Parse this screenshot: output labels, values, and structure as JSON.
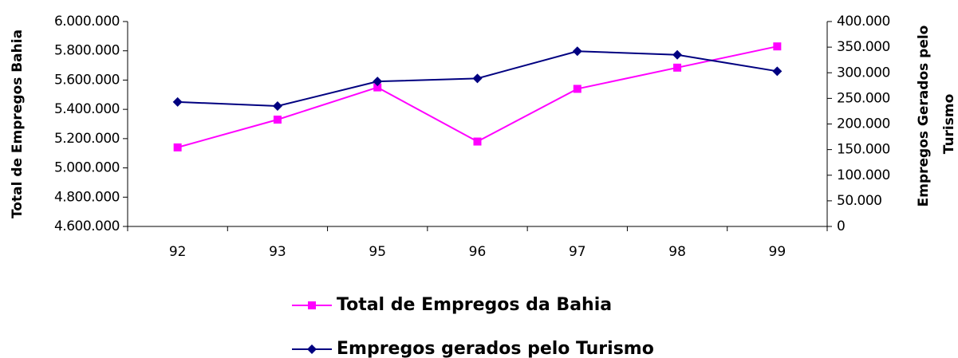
{
  "chart_data": {
    "type": "line",
    "ylabel": "Total de Empregos Bahia",
    "y2label": [
      "Empregos Gerados pelo",
      "Turismo"
    ],
    "categories": [
      "92",
      "93",
      "95",
      "96",
      "97",
      "98",
      "99"
    ],
    "series": [
      {
        "name": "Total de Empregos da Bahia",
        "color": "#ff00ff",
        "marker": "square",
        "axis": "y",
        "values": [
          5140000,
          5330000,
          5550000,
          5180000,
          5540000,
          5685000,
          5830000
        ]
      },
      {
        "name": "Empregos gerados pelo Turismo",
        "color": "#000080",
        "marker": "diamond",
        "axis": "y2",
        "values": [
          243000,
          235000,
          283000,
          289000,
          342000,
          335000,
          303000
        ]
      }
    ],
    "ylim": [
      4600000,
      6000000
    ],
    "yticks": [
      {
        "value": 4600000,
        "label": "4.600.000"
      },
      {
        "value": 4800000,
        "label": "4.800.000"
      },
      {
        "value": 5000000,
        "label": "5.000.000"
      },
      {
        "value": 5200000,
        "label": "5.200.000"
      },
      {
        "value": 5400000,
        "label": "5.400.000"
      },
      {
        "value": 5600000,
        "label": "5.600.000"
      },
      {
        "value": 5800000,
        "label": "5.800.000"
      },
      {
        "value": 6000000,
        "label": "6.000.000"
      }
    ],
    "y2lim": [
      0,
      400000
    ],
    "y2ticks": [
      0,
      {
        "value": 50000,
        "label": "50.000"
      },
      {
        "value": 100000,
        "label": "100.000"
      },
      {
        "value": 150000,
        "label": "150.000"
      },
      {
        "value": 200000,
        "label": "200.000"
      },
      {
        "value": 250000,
        "label": "250.000"
      },
      {
        "value": 300000,
        "label": "300.000"
      },
      {
        "value": 350000,
        "label": "350.000"
      },
      {
        "value": 400000,
        "label": "400.000"
      }
    ],
    "grid": false,
    "legend": "bottom"
  }
}
